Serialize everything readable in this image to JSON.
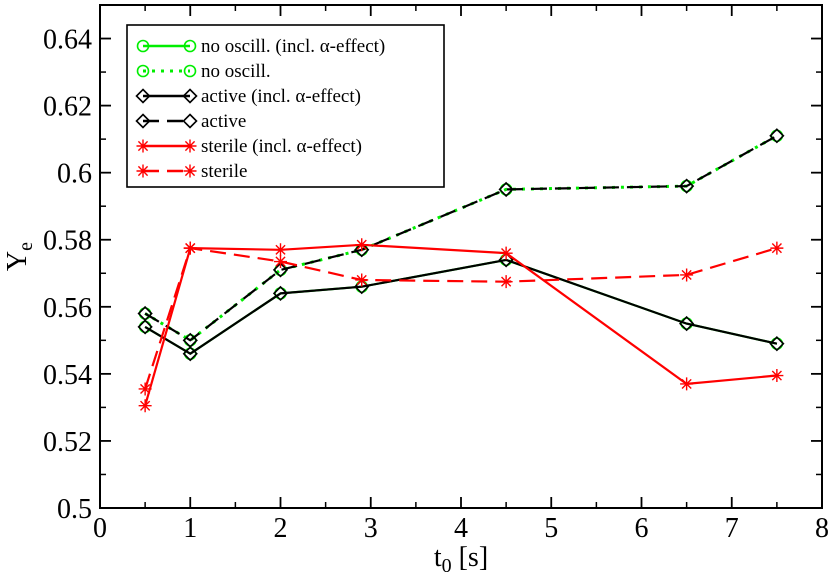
{
  "chart_data": {
    "type": "line",
    "xlabel_main": "t",
    "xlabel_sub": "0",
    "xlabel_unit": " [s]",
    "ylabel_main": "Y",
    "ylabel_sub": "e",
    "xlim": [
      0,
      8
    ],
    "ylim": [
      0.5,
      0.65
    ],
    "xticks": [
      "0",
      "1",
      "2",
      "3",
      "4",
      "5",
      "6",
      "7",
      "8"
    ],
    "yticks": [
      "0.5",
      "0.52",
      "0.54",
      "0.56",
      "0.58",
      "0.6",
      "0.62",
      "0.64"
    ],
    "grid": false,
    "legend_position": "top-left",
    "series": [
      {
        "name": "no oscill. (incl. α-effect)",
        "color": "#00ee00",
        "line": "solid",
        "marker": "circle",
        "x": [
          0.5,
          1.0,
          2.0,
          2.9,
          4.5,
          6.5,
          7.5
        ],
        "y": [
          0.554,
          0.546,
          0.564,
          0.566,
          0.574,
          0.555,
          0.549
        ]
      },
      {
        "name": "no oscill.",
        "color": "#00ee00",
        "line": "dotted",
        "marker": "circle",
        "x": [
          0.5,
          1.0,
          2.0,
          2.9,
          4.5,
          6.5,
          7.5
        ],
        "y": [
          0.558,
          0.55,
          0.571,
          0.577,
          0.595,
          0.596,
          0.611
        ]
      },
      {
        "name": "active (incl. α-effect)",
        "color": "#000000",
        "line": "solid",
        "marker": "diamond",
        "x": [
          0.5,
          1.0,
          2.0,
          2.9,
          4.5,
          6.5,
          7.5
        ],
        "y": [
          0.554,
          0.546,
          0.564,
          0.566,
          0.574,
          0.555,
          0.549
        ]
      },
      {
        "name": "active",
        "color": "#000000",
        "line": "dashed",
        "marker": "diamond",
        "x": [
          0.5,
          1.0,
          2.0,
          2.9,
          4.5,
          6.5,
          7.5
        ],
        "y": [
          0.558,
          0.55,
          0.571,
          0.577,
          0.595,
          0.596,
          0.611
        ]
      },
      {
        "name": "sterile (incl. α-effect)",
        "color": "#ff0000",
        "line": "solid",
        "marker": "asterisk",
        "x": [
          0.5,
          1.0,
          2.0,
          2.9,
          4.5,
          6.5,
          7.5
        ],
        "y": [
          0.5305,
          0.5775,
          0.577,
          0.5785,
          0.576,
          0.537,
          0.5395
        ]
      },
      {
        "name": "sterile",
        "color": "#ff0000",
        "line": "dashed",
        "marker": "asterisk",
        "x": [
          0.5,
          1.0,
          2.0,
          2.9,
          4.5,
          6.5,
          7.5
        ],
        "y": [
          0.5355,
          0.5775,
          0.5735,
          0.568,
          0.5675,
          0.5695,
          0.5775
        ]
      }
    ]
  }
}
